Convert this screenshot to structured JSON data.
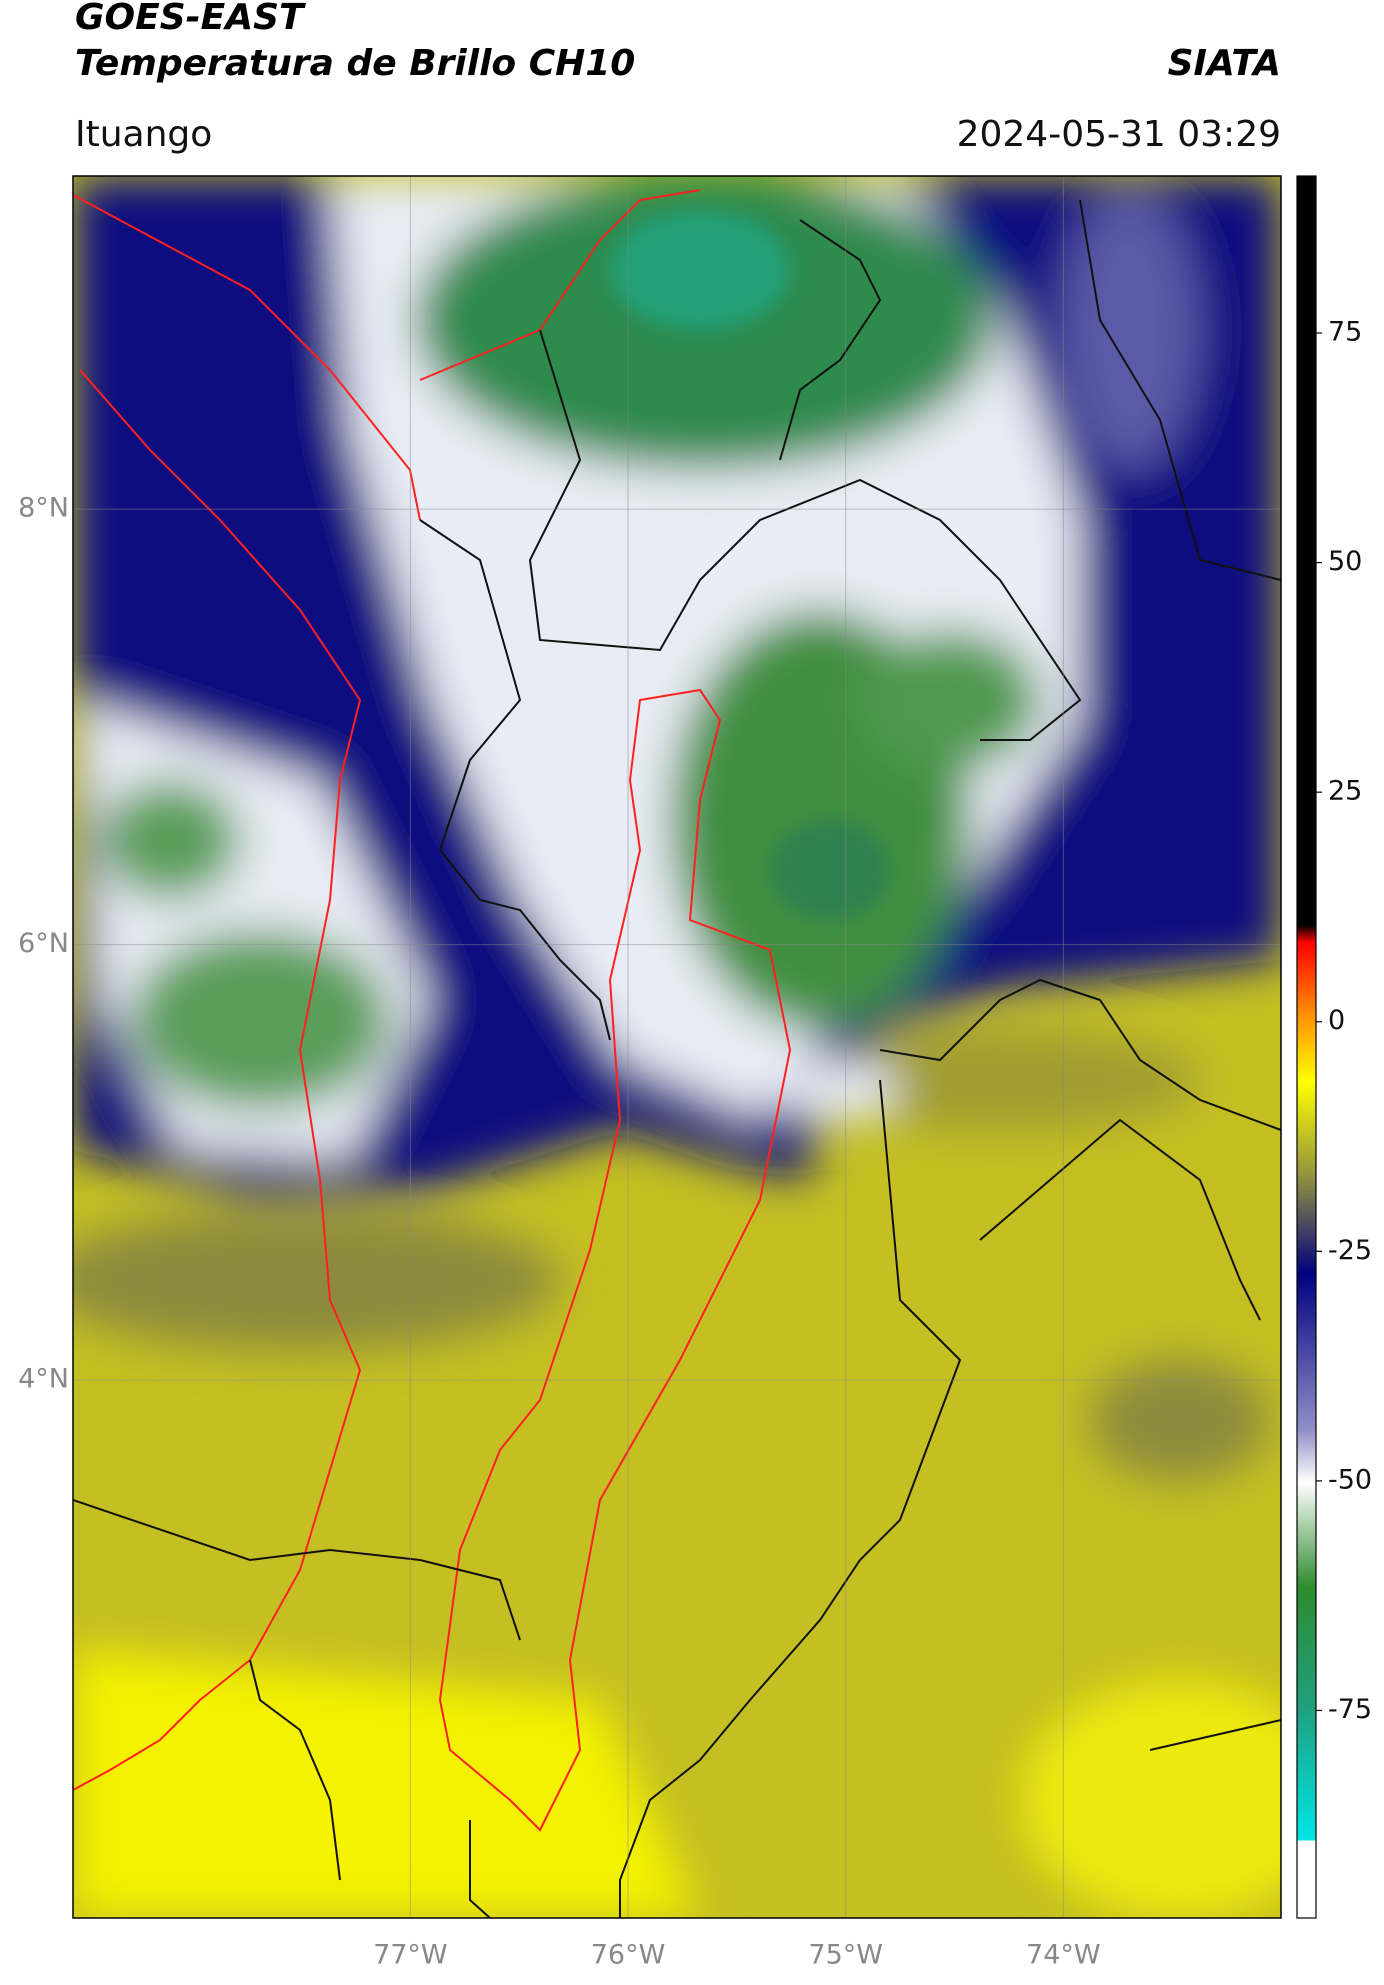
{
  "title": "GOES-EAST",
  "subtitle": "Temperatura de Brillo CH10",
  "source": "SIATA",
  "location": "Ituango",
  "timestamp": "2024-05-31 03:29",
  "map": {
    "latlim": [
      1.53,
      9.53
    ],
    "lonlim": [
      -78.55,
      -73.0
    ],
    "grid": true,
    "yticks": [
      {
        "value": 8,
        "label": "8°N"
      },
      {
        "value": 6,
        "label": "6°N"
      },
      {
        "value": 4,
        "label": "4°N"
      }
    ],
    "xticks": [
      {
        "value": -77,
        "label": "77°W"
      },
      {
        "value": -76,
        "label": "76°W"
      },
      {
        "value": -75,
        "label": "75°W"
      },
      {
        "value": -74,
        "label": "74°W"
      }
    ]
  },
  "colorbar": {
    "lim": [
      -97.6,
      92.1
    ],
    "ticks": [
      75,
      50,
      25,
      0,
      -25,
      -50,
      -75
    ]
  }
}
